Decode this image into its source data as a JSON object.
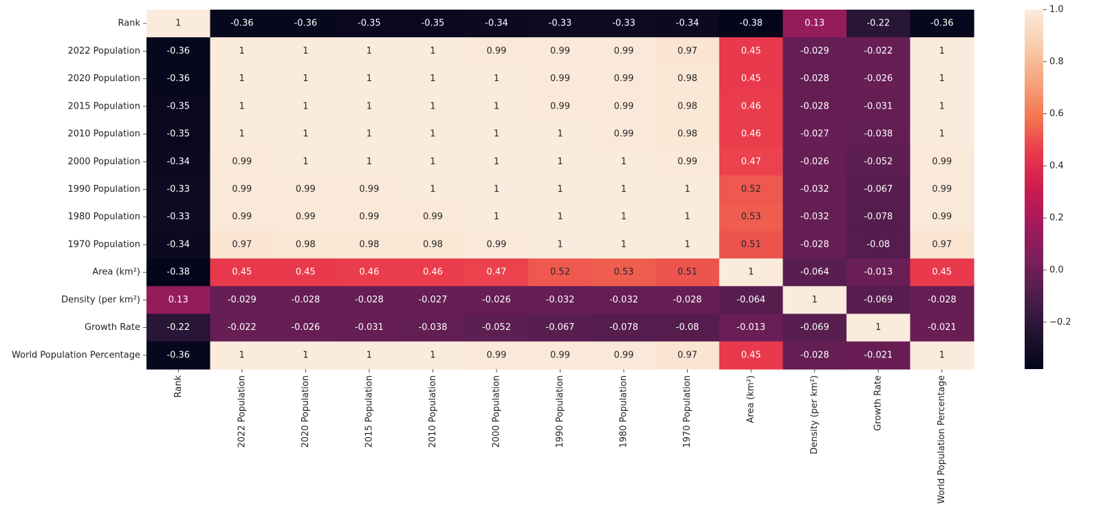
{
  "chart_data": {
    "type": "heatmap",
    "title": "",
    "xlabel": "",
    "ylabel": "",
    "labels": [
      "Rank",
      "2022 Population",
      "2020 Population",
      "2015 Population",
      "2010 Population",
      "2000 Population",
      "1990 Population",
      "1980 Population",
      "1970 Population",
      "Area (km²)",
      "Density (per km²)",
      "Growth Rate",
      "World Population Percentage"
    ],
    "values": [
      [
        1,
        -0.36,
        -0.36,
        -0.35,
        -0.35,
        -0.34,
        -0.33,
        -0.33,
        -0.34,
        -0.38,
        0.13,
        -0.22,
        -0.36
      ],
      [
        -0.36,
        1,
        1,
        1,
        1,
        0.99,
        0.99,
        0.99,
        0.97,
        0.45,
        -0.029,
        -0.022,
        1
      ],
      [
        -0.36,
        1,
        1,
        1,
        1,
        1,
        0.99,
        0.99,
        0.98,
        0.45,
        -0.028,
        -0.026,
        1
      ],
      [
        -0.35,
        1,
        1,
        1,
        1,
        1,
        0.99,
        0.99,
        0.98,
        0.46,
        -0.028,
        -0.031,
        1
      ],
      [
        -0.35,
        1,
        1,
        1,
        1,
        1,
        1,
        0.99,
        0.98,
        0.46,
        -0.027,
        -0.038,
        1
      ],
      [
        -0.34,
        0.99,
        1,
        1,
        1,
        1,
        1,
        1,
        0.99,
        0.47,
        -0.026,
        -0.052,
        0.99
      ],
      [
        -0.33,
        0.99,
        0.99,
        0.99,
        1,
        1,
        1,
        1,
        1,
        0.52,
        -0.032,
        -0.067,
        0.99
      ],
      [
        -0.33,
        0.99,
        0.99,
        0.99,
        0.99,
        1,
        1,
        1,
        1,
        0.53,
        -0.032,
        -0.078,
        0.99
      ],
      [
        -0.34,
        0.97,
        0.98,
        0.98,
        0.98,
        0.99,
        1,
        1,
        1,
        0.51,
        -0.028,
        -0.08,
        0.97
      ],
      [
        -0.38,
        0.45,
        0.45,
        0.46,
        0.46,
        0.47,
        0.52,
        0.53,
        0.51,
        1,
        -0.064,
        -0.013,
        0.45
      ],
      [
        0.13,
        -0.029,
        -0.028,
        -0.028,
        -0.027,
        -0.026,
        -0.032,
        -0.032,
        -0.028,
        -0.064,
        1,
        -0.069,
        -0.028
      ],
      [
        -0.22,
        -0.022,
        -0.026,
        -0.031,
        -0.038,
        -0.052,
        -0.067,
        -0.078,
        -0.08,
        -0.013,
        -0.069,
        1,
        -0.021
      ],
      [
        -0.36,
        1,
        1,
        1,
        1,
        0.99,
        0.99,
        0.99,
        0.97,
        0.45,
        -0.028,
        -0.021,
        1
      ]
    ],
    "colorbar": {
      "min": -0.38,
      "max": 1.0,
      "ticks": [
        -0.2,
        0.0,
        0.2,
        0.4,
        0.6,
        0.8,
        1.0
      ],
      "tick_labels": [
        "−0.2",
        "0.0",
        "0.2",
        "0.4",
        "0.6",
        "0.8",
        "1.0"
      ],
      "colormap": "rocket",
      "colormap_stops": [
        "#03051a",
        "#221331",
        "#4c1d4b",
        "#7a1f5c",
        "#a11a5b",
        "#cb1b4f",
        "#e9384c",
        "#f37651",
        "#f6a47c",
        "#f8cdac",
        "#faebdd"
      ]
    }
  }
}
